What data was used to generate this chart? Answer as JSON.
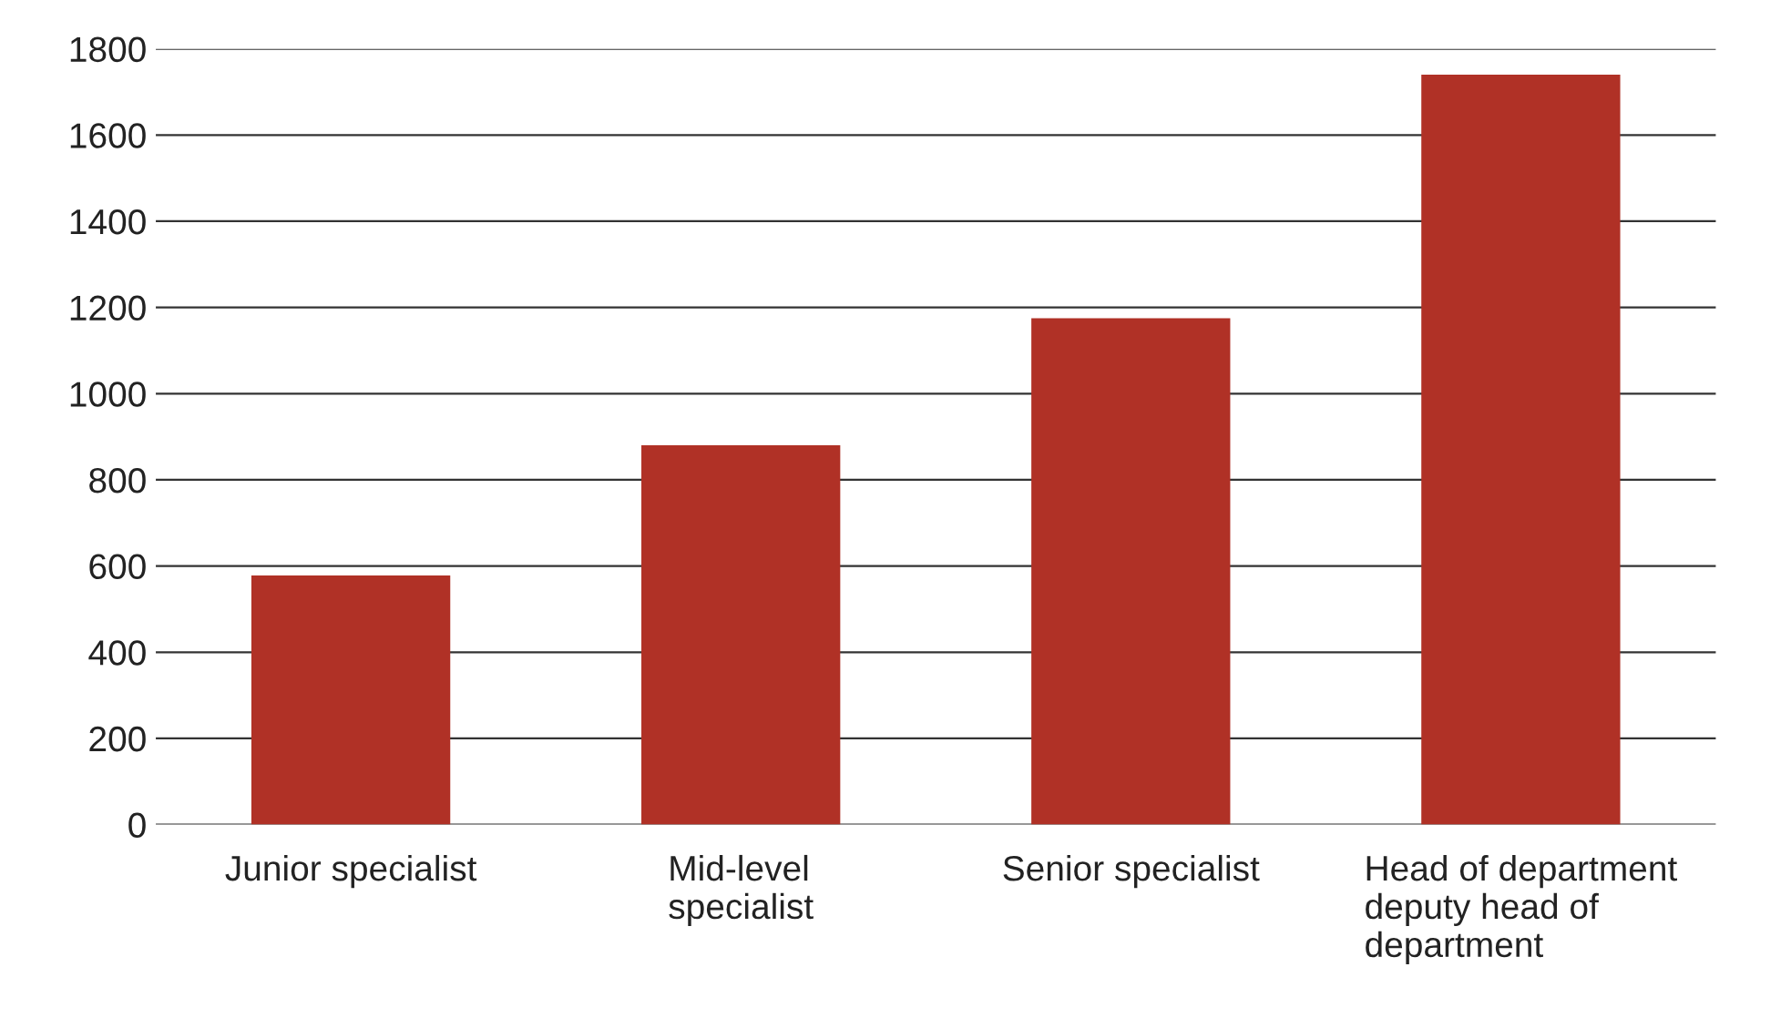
{
  "chart_data": {
    "type": "bar",
    "categories": [
      "Junior specialist",
      "Mid-level\nspecialist",
      "Senior specialist",
      "Head of department\ndeputy head of\ndepartment"
    ],
    "values": [
      578,
      880,
      1175,
      1740
    ],
    "color": "#b03126",
    "ylim": [
      0,
      1800
    ],
    "yticks": [
      0,
      200,
      400,
      600,
      800,
      1000,
      1200,
      1400,
      1600,
      1800
    ],
    "grid": "y"
  }
}
